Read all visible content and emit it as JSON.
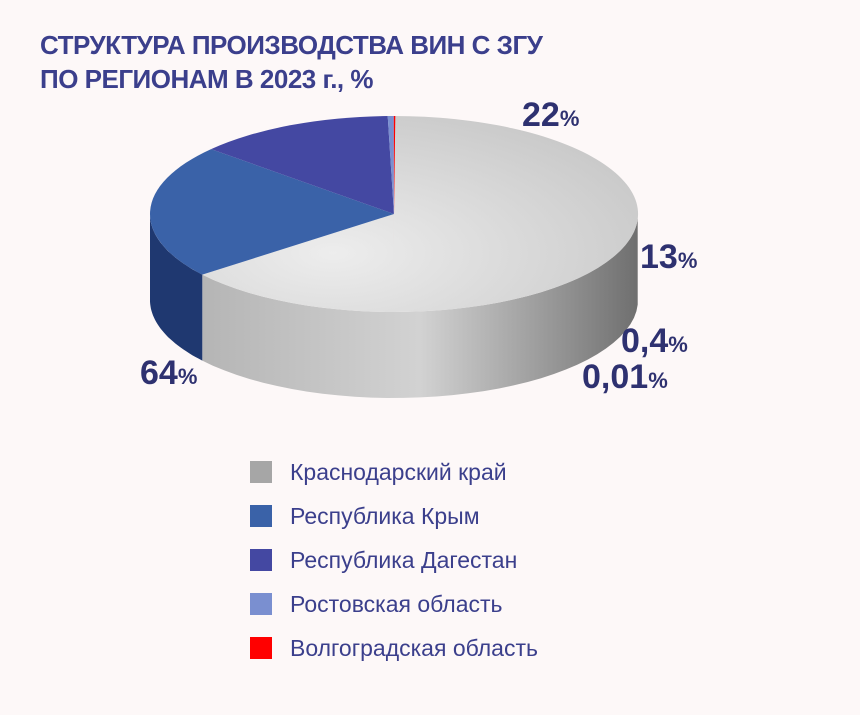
{
  "chart_data": {
    "type": "pie",
    "title_lines": [
      "СТРУКТУРА ПРОИЗВОДСТВА ВИН С ЗГУ",
      "ПО РЕГИОНАМ В 2023 г., %"
    ],
    "slices": [
      {
        "name": "Краснодарский край",
        "value": 64,
        "label_num": "64",
        "label_unit": "%",
        "color": "#c2c2c2",
        "side": "#9b9b9b"
      },
      {
        "name": "Республика Крым",
        "value": 22,
        "label_num": "22",
        "label_unit": "%",
        "color": "#3a62a8",
        "side": "#1f3870"
      },
      {
        "name": "Республика Дагестан",
        "value": 13,
        "label_num": "13",
        "label_unit": "%",
        "color": "#4448a2",
        "side": "#1e2462"
      },
      {
        "name": "Ростовская область",
        "value": 0.4,
        "label_num": "0,4",
        "label_unit": "%",
        "color": "#7a8fd0",
        "side": "#4a5a9a"
      },
      {
        "name": "Волгоградская область",
        "value": 0.01,
        "label_num": "0,01",
        "label_unit": "%",
        "color": "#ff0000",
        "side": "#a00000"
      }
    ],
    "legend_position": "bottom"
  }
}
